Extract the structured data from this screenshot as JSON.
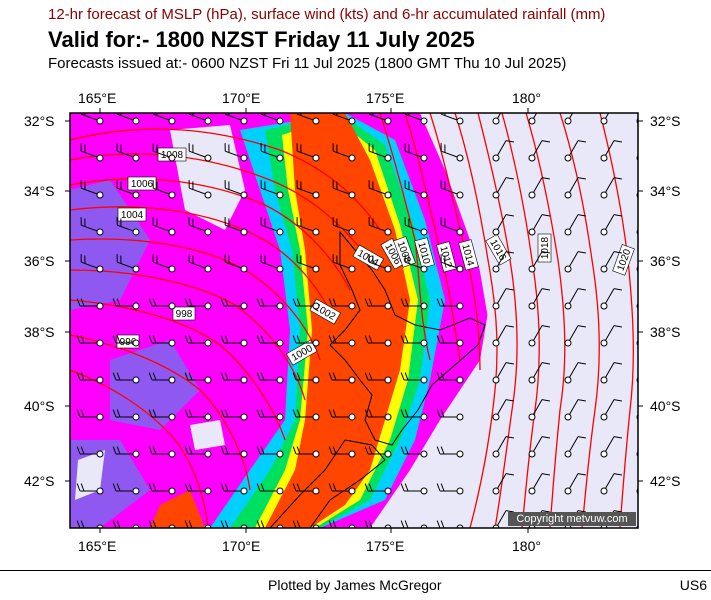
{
  "header": {
    "subtitle": "12-hr forecast of MSLP (hPa), surface wind (kts) and 6-hr accumulated rainfall (mm)",
    "title": "Valid for:- 1800 NZST Friday 11 July 2025",
    "issued": "Forecasts issued at:- 0600 NZST Fri 11 Jul 2025 (1800 GMT Thu 10 Jul 2025)"
  },
  "map": {
    "lon_labels": [
      "165°E",
      "170°E",
      "175°E",
      "180°"
    ],
    "lat_labels": [
      "32°S",
      "34°S",
      "36°S",
      "38°S",
      "40°S",
      "42°S"
    ],
    "isobar_labels": [
      "1008",
      "1006",
      "1004",
      "998",
      "996",
      "1000",
      "1002",
      "1004",
      "1006",
      "1008",
      "1010",
      "1012",
      "1014",
      "1016",
      "1018",
      "1020"
    ],
    "colors": {
      "isobar": "#ff0000",
      "rain_heavy": "#ff4500",
      "rain_magenta": "#ff00ff",
      "rain_purple": "#7b68ee",
      "rain_green": "#00e060",
      "rain_cyan": "#00d0ff",
      "rain_yellow": "#ffff00",
      "background": "#e8e8f8"
    },
    "copyright": "Copyright metvuw.com"
  },
  "footer": {
    "credit": "Plotted by James McGregor",
    "code": "US6"
  }
}
